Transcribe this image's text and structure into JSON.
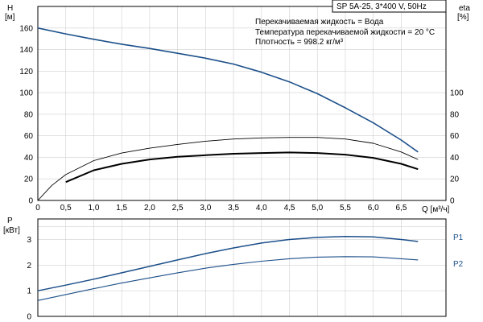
{
  "header": {
    "model_box": "SP 5A-25, 3*400 V, 50Hz"
  },
  "legend_text": {
    "line1": "Перекачиваемая жидкость = Вода",
    "line2": "Температура перекачиваемой жидкости = 20 °C",
    "line3": "Плотность = 998.2 кг/м³"
  },
  "colors": {
    "head": "#1c4f8a",
    "power": "#1c4f8a",
    "eta": "#000000",
    "grid": "#d0d0d0"
  },
  "chart_data": [
    {
      "type": "line",
      "title": "",
      "xlabel": "Q [м³/ч]",
      "ylabel_left": [
        "H",
        "[м]"
      ],
      "ylabel_right": [
        "eta",
        "[%]"
      ],
      "xlim": [
        0,
        7.3
      ],
      "ylim_left": [
        0,
        180
      ],
      "ylim_right": [
        0,
        180
      ],
      "x_ticks": [
        "0",
        "0,5",
        "1,0",
        "1,5",
        "2,0",
        "2,5",
        "3,0",
        "3,5",
        "4,0",
        "4,5",
        "5,0",
        "5,5",
        "6,0",
        "6,5"
      ],
      "left_ticks": [
        "0",
        "20",
        "40",
        "60",
        "80",
        "100",
        "120",
        "140",
        "160"
      ],
      "right_ticks": [
        "0",
        "20",
        "40",
        "60",
        "80",
        "100"
      ],
      "grid": true,
      "series": [
        {
          "key": "head",
          "axis": "left",
          "x": [
            0,
            0.5,
            1.0,
            1.5,
            2.0,
            2.5,
            3.0,
            3.5,
            4.0,
            4.5,
            5.0,
            5.5,
            6.0,
            6.5,
            6.8
          ],
          "y": [
            160,
            154.5,
            149.5,
            145,
            141,
            136.5,
            132,
            126.5,
            119,
            110,
            99,
            86,
            72,
            56,
            45
          ]
        },
        {
          "key": "eta_total",
          "axis": "right",
          "x": [
            0,
            0.25,
            0.5,
            1.0,
            1.5,
            2.0,
            2.5,
            3.0,
            3.5,
            4.0,
            4.5,
            5.0,
            5.5,
            6.0,
            6.5,
            6.8
          ],
          "y": [
            0,
            14,
            24,
            37,
            44,
            48.5,
            52,
            55,
            57,
            58,
            58.5,
            58.5,
            57,
            53,
            45,
            38
          ]
        },
        {
          "key": "eta_pump",
          "axis": "right",
          "x": [
            0.5,
            1.0,
            1.5,
            2.0,
            2.5,
            3.0,
            3.5,
            4.0,
            4.5,
            5.0,
            5.5,
            6.0,
            6.5,
            6.8
          ],
          "y": [
            17,
            28,
            34,
            38,
            40.5,
            42,
            43.3,
            44,
            44.5,
            44,
            42.5,
            39.5,
            34,
            29
          ]
        }
      ]
    },
    {
      "type": "line",
      "title": "",
      "xlabel": "",
      "ylabel_left": [
        "P",
        "[кВт]"
      ],
      "xlim": [
        0,
        7.3
      ],
      "ylim": [
        0,
        3.8
      ],
      "left_ticks": [
        "0",
        "1",
        "2",
        "3"
      ],
      "grid": true,
      "series": [
        {
          "name": "P1",
          "key": "p1",
          "x": [
            0,
            0.5,
            1.0,
            1.5,
            2.0,
            2.5,
            3.0,
            3.5,
            4.0,
            4.5,
            5.0,
            5.5,
            6.0,
            6.5,
            6.8
          ],
          "y": [
            1.0,
            1.22,
            1.45,
            1.7,
            1.95,
            2.2,
            2.45,
            2.67,
            2.86,
            3.0,
            3.08,
            3.12,
            3.1,
            3.0,
            2.92
          ]
        },
        {
          "name": "P2",
          "key": "p2",
          "x": [
            0,
            0.5,
            1.0,
            1.5,
            2.0,
            2.5,
            3.0,
            3.5,
            4.0,
            4.5,
            5.0,
            5.5,
            6.0,
            6.5,
            6.8
          ],
          "y": [
            0.62,
            0.85,
            1.08,
            1.3,
            1.5,
            1.7,
            1.88,
            2.03,
            2.15,
            2.25,
            2.31,
            2.33,
            2.32,
            2.25,
            2.2
          ]
        }
      ]
    }
  ]
}
